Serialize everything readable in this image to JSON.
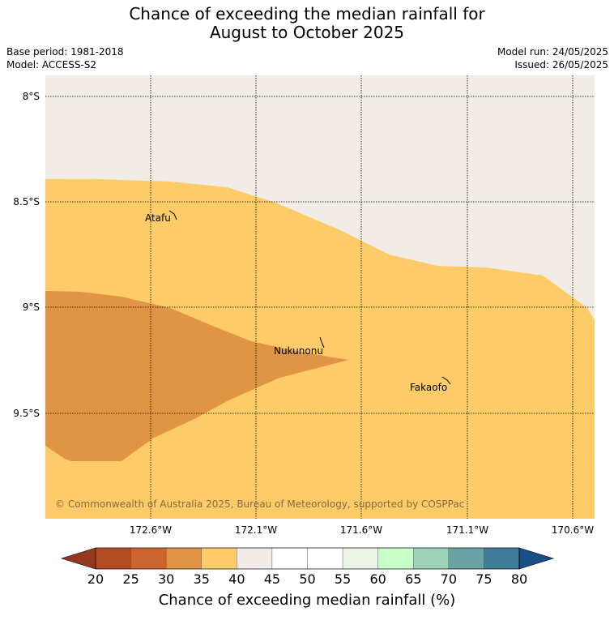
{
  "title": {
    "line1": "Chance of exceeding the median rainfall for",
    "line2": "August to October 2025"
  },
  "meta": {
    "base_period": "Base period: 1981-2018",
    "model": "Model: ACCESS-S2",
    "model_run": "Model run: 24/05/2025",
    "issued": "Issued: 26/05/2025"
  },
  "map": {
    "latitude_labels": [
      "8°S",
      "8.5°S",
      "9°S",
      "9.5°S"
    ],
    "longitude_labels": [
      "172.6°W",
      "172.1°W",
      "171.6°W",
      "171.1°W",
      "170.6°W"
    ],
    "places": {
      "atafu": "Atafu",
      "nukunonu": "Nukunonu",
      "fakaofo": "Fakaofo"
    },
    "copyright": "© Commonwealth of Australia 2025, Bureau of Meteorology, supported by COSPPac",
    "colors": {
      "no_data": "#f1ece6",
      "band_35_40": "#fdcb68",
      "band_30_35": "#e09544"
    }
  },
  "colorbar": {
    "title": "Chance of exceeding median rainfall (%)",
    "tick_labels": [
      "20",
      "25",
      "30",
      "35",
      "40",
      "45",
      "50",
      "55",
      "60",
      "65",
      "70",
      "75",
      "80"
    ],
    "colors": [
      "#b34b21",
      "#cd6430",
      "#e09544",
      "#fdcb68",
      "#f1ece6",
      "#ffffff",
      "#ffffff",
      "#eaf5e6",
      "#c8ffc8",
      "#9dd2b8",
      "#6aa3a6",
      "#3f7a97"
    ],
    "under_color": "#94391d",
    "over_color": "#174f86"
  }
}
